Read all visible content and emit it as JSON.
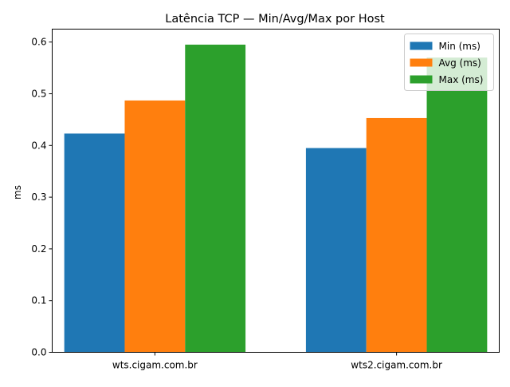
{
  "chart_data": {
    "type": "bar",
    "title": "Latência TCP — Min/Avg/Max por Host",
    "xlabel": "",
    "ylabel": "ms",
    "categories": [
      "wts.cigam.com.br",
      "wts2.cigam.com.br"
    ],
    "series": [
      {
        "name": "Min (ms)",
        "values": [
          0.423,
          0.395
        ],
        "color": "#1f77b4"
      },
      {
        "name": "Avg (ms)",
        "values": [
          0.487,
          0.453
        ],
        "color": "#ff7f0e"
      },
      {
        "name": "Max (ms)",
        "values": [
          0.595,
          0.57
        ],
        "color": "#2ca02c"
      }
    ],
    "ylim": [
      0,
      0.625
    ],
    "yticks": [
      "0.0",
      "0.1",
      "0.2",
      "0.3",
      "0.4",
      "0.5",
      "0.6"
    ],
    "ytick_values": [
      0.0,
      0.1,
      0.2,
      0.3,
      0.4,
      0.5,
      0.6
    ],
    "grid": false,
    "legend": "top-right"
  }
}
